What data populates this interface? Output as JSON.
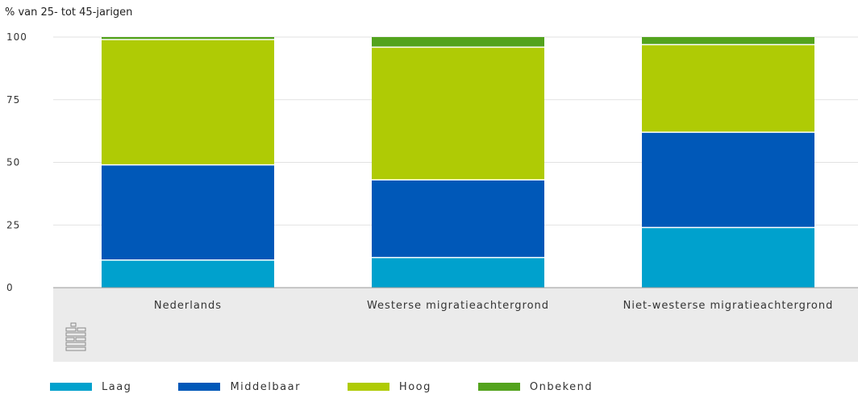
{
  "chart_data": {
    "type": "bar",
    "stacked": true,
    "ylabel": "% van 25- tot 45-jarigen",
    "ylim": [
      0,
      100
    ],
    "yticks": [
      0,
      25,
      50,
      75,
      100
    ],
    "grid": true,
    "legend_position": "bottom",
    "categories": [
      "Nederlands",
      "Westerse migratieachtergrond",
      "Niet-westerse migratieachtergrond"
    ],
    "series": [
      {
        "name": "Laag",
        "color": "#00a1cd",
        "values": [
          11,
          12,
          24
        ]
      },
      {
        "name": "Middelbaar",
        "color": "#0058b8",
        "values": [
          38,
          31,
          38
        ]
      },
      {
        "name": "Hoog",
        "color": "#afcb05",
        "values": [
          50,
          53,
          35
        ]
      },
      {
        "name": "Onbekend",
        "color": "#53a31d",
        "values": [
          1,
          4,
          3
        ]
      }
    ]
  },
  "footer_logo_icon": "cbs-logo-icon"
}
